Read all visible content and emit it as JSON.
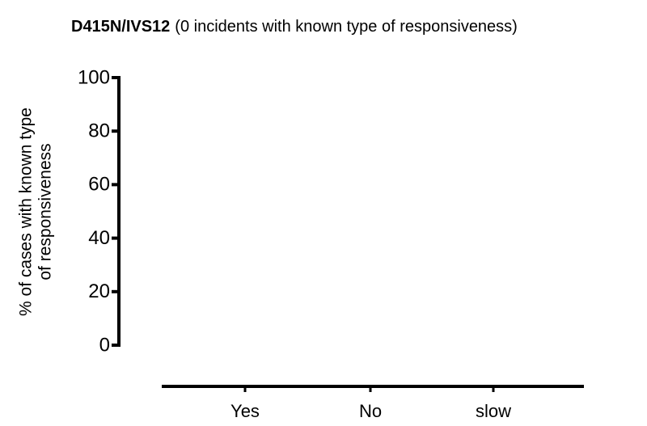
{
  "chart_data": {
    "type": "bar",
    "title": "D415N/IVS12",
    "subtitle": "(0 incidents with known type of responsiveness)",
    "y_label": [
      "% of cases with known type",
      "of responsiveness"
    ],
    "categories": [
      "Yes",
      "No",
      "slow"
    ],
    "values": [
      0,
      0,
      0
    ],
    "color": "#000000",
    "ylim": [
      0,
      100
    ],
    "yticks": [
      0,
      20,
      40,
      60,
      80,
      100
    ]
  }
}
